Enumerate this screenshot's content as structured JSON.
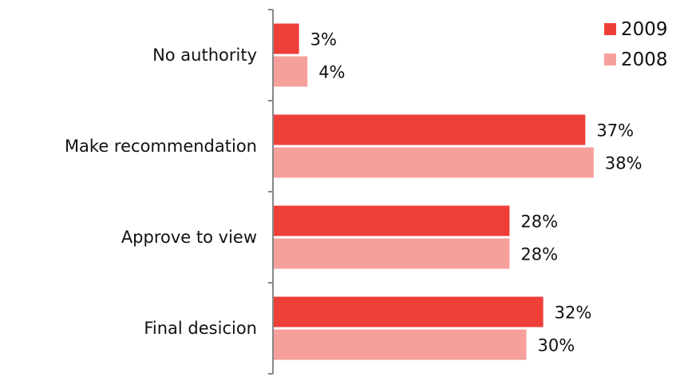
{
  "chart_data": {
    "type": "bar",
    "orientation": "horizontal",
    "title": "",
    "xlabel": "",
    "ylabel": "",
    "categories": [
      "No authority",
      "Make recommendation",
      "Approve to view",
      "Final desicion"
    ],
    "series": [
      {
        "name": "2009",
        "values": [
          3,
          37,
          28,
          32
        ],
        "color": "#ee3e38"
      },
      {
        "name": "2008",
        "values": [
          4,
          38,
          28,
          30
        ],
        "color": "#f6a09c"
      }
    ],
    "value_suffix": "%",
    "xlim": [
      0,
      46
    ],
    "grid": false,
    "legend_position": "top-right",
    "axis_color": "#888888"
  }
}
